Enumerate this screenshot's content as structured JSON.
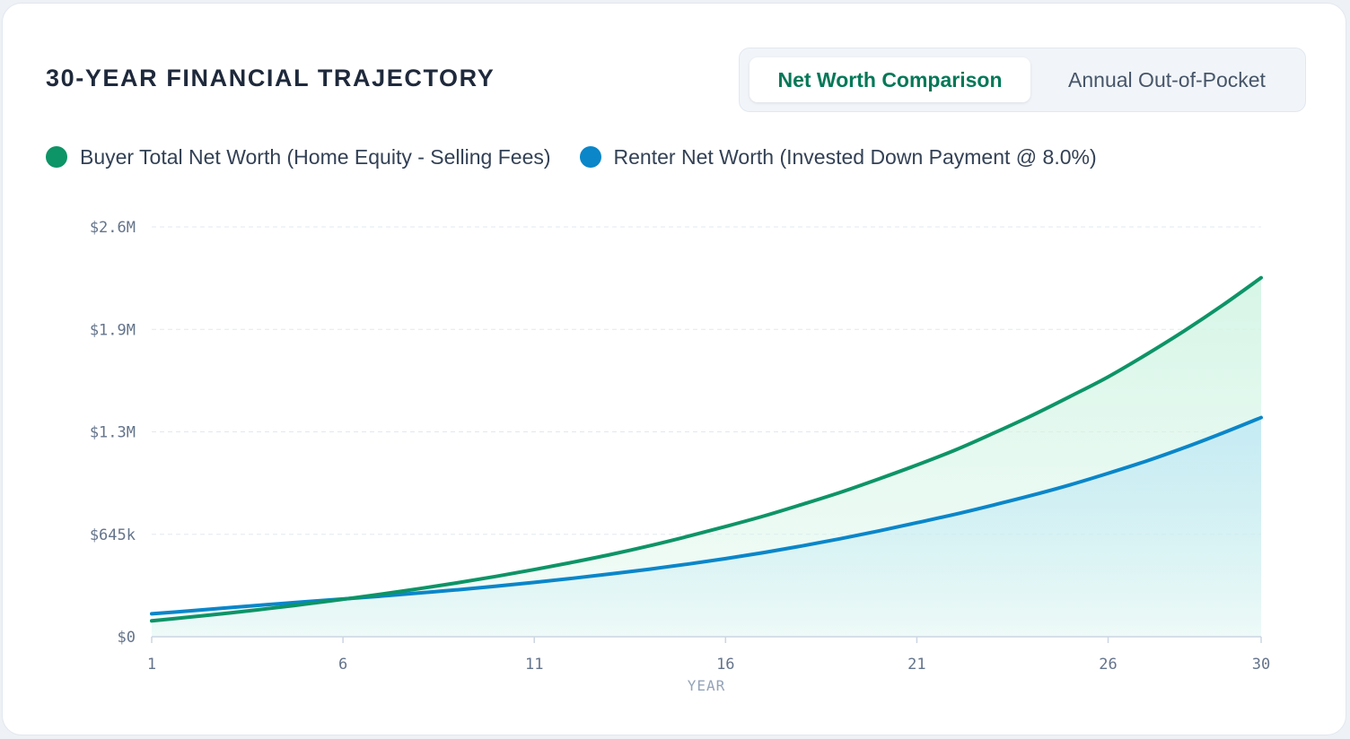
{
  "header": {
    "title": "30-YEAR FINANCIAL TRAJECTORY"
  },
  "tabs": [
    {
      "label": "Net Worth Comparison",
      "active": true
    },
    {
      "label": "Annual Out-of-Pocket",
      "active": false
    }
  ],
  "colors": {
    "buyer": "#0d9467",
    "renter": "#0a86c9",
    "buyer_fill": "#d5f5e6",
    "renter_fill": "#c6ebf4",
    "grid": "#e2e8f0",
    "axis": "#cbd5e1"
  },
  "chart_data": {
    "type": "area",
    "x": [
      1,
      2,
      3,
      4,
      5,
      6,
      7,
      8,
      9,
      10,
      11,
      12,
      13,
      14,
      15,
      16,
      17,
      18,
      19,
      20,
      21,
      22,
      23,
      24,
      25,
      26,
      27,
      28,
      29,
      30
    ],
    "series": [
      {
        "name": "Buyer Total Net Worth (Home Equity - Selling Fees)",
        "color": "#0d9467",
        "values": [
          100000,
          124000,
          149000,
          176000,
          205000,
          236000,
          268000,
          303000,
          340000,
          380000,
          423000,
          469000,
          518000,
          572000,
          631000,
          694000,
          760000,
          833000,
          909000,
          993000,
          1081000,
          1175000,
          1281000,
          1392000,
          1512000,
          1636000,
          1777000,
          1927000,
          2088000,
          2260000
        ]
      },
      {
        "name": "Renter Net Worth (Invested Down Payment @ 8.0%)",
        "color": "#0a86c9",
        "values": [
          145000,
          163000,
          183000,
          202000,
          220000,
          238000,
          256000,
          276000,
          296000,
          318000,
          342000,
          368000,
          396000,
          425000,
          457000,
          492000,
          530000,
          572000,
          617000,
          666000,
          718000,
          771000,
          829000,
          890000,
          956000,
          1029000,
          1106000,
          1191000,
          1283000,
          1380000
        ]
      }
    ],
    "yticks": [
      {
        "value": 0,
        "label": "$0"
      },
      {
        "value": 645000,
        "label": "$645k"
      },
      {
        "value": 1290000,
        "label": "$1.3M"
      },
      {
        "value": 1935000,
        "label": "$1.9M"
      },
      {
        "value": 2580000,
        "label": "$2.6M"
      }
    ],
    "xticks": [
      1,
      6,
      11,
      16,
      21,
      26,
      30
    ],
    "xlabel": "YEAR",
    "ylabel": "",
    "ylim": [
      0,
      2580000
    ],
    "xlim": [
      1,
      30
    ],
    "grid": true
  }
}
